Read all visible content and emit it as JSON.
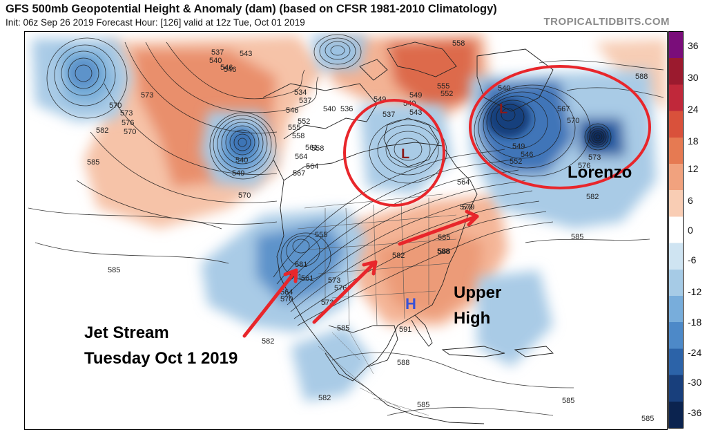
{
  "header": {
    "title": "GFS 500mb Geopotential Height & Anomaly (dam) (based on CFSR 1981-2010 Climatology)",
    "subtitle": "Init: 06z Sep 26 2019   Forecast Hour: [126]   valid at 12z Tue, Oct 01 2019",
    "brand": "TROPICALTIDBITS.COM"
  },
  "colorbar": {
    "labels": [
      "36",
      "30",
      "24",
      "18",
      "12",
      "6",
      "0",
      "-6",
      "-12",
      "-18",
      "-24",
      "-30",
      "-36"
    ],
    "colors_top_to_bottom": [
      "#7a0d7a",
      "#9b1a2e",
      "#c0283a",
      "#d9513b",
      "#e67a52",
      "#f1a27e",
      "#f9cdb4",
      "#ffffff",
      "#cfe4f2",
      "#a6cbe6",
      "#78addb",
      "#4d89c8",
      "#2c63a8",
      "#183f7c",
      "#0b234f"
    ]
  },
  "annotations": {
    "jet_line1": "Jet Stream",
    "jet_line2": "Tuesday Oct 1 2019",
    "upper_line1": "Upper",
    "upper_line2": "High",
    "lorenzo": "Lorenzo",
    "low_symbol": "L",
    "high_symbol": "H",
    "colors": {
      "arrow": "#e8262b",
      "circle": "#e8262b",
      "low": "#8b1a1a",
      "high": "#3a52d6"
    }
  },
  "contour_labels": [
    "537",
    "543",
    "540",
    "546",
    "534",
    "537",
    "546",
    "540",
    "536",
    "552",
    "549",
    "555",
    "552",
    "549",
    "540",
    "543",
    "537",
    "558",
    "540",
    "567",
    "570",
    "573",
    "570",
    "576",
    "579",
    "582",
    "588",
    "549",
    "540",
    "555",
    "558",
    "561",
    "564",
    "567",
    "573",
    "570",
    "552",
    "546",
    "549",
    "546",
    "555",
    "561",
    "558",
    "564",
    "579",
    "585",
    "588",
    "585",
    "585",
    "582",
    "581",
    "561",
    "564",
    "570",
    "573",
    "576",
    "573",
    "582",
    "585",
    "588",
    "591",
    "582",
    "588",
    "585",
    "585",
    "585",
    "582",
    "585",
    "576",
    "573",
    "570",
    "564"
  ]
}
